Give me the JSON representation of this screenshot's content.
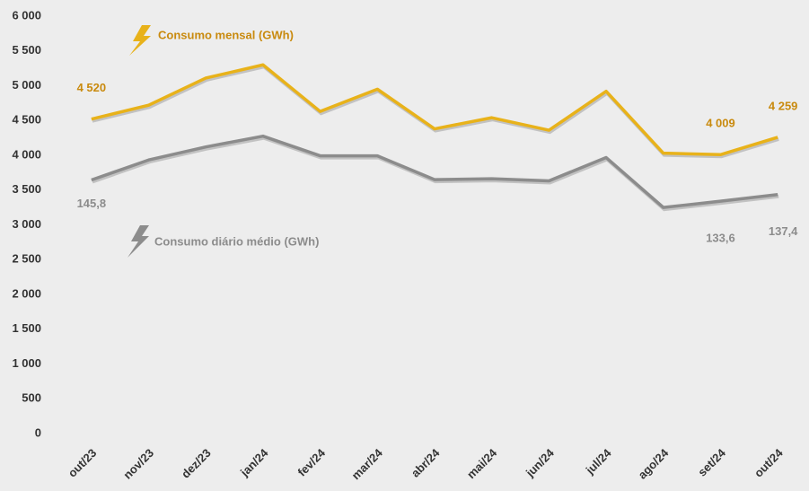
{
  "chart_data": {
    "type": "line",
    "categories": [
      "out/23",
      "nov/23",
      "dez/23",
      "jan/24",
      "fev/24",
      "mar/24",
      "abr/24",
      "mai/24",
      "jun/24",
      "jul/24",
      "ago/24",
      "set/24",
      "out/24"
    ],
    "series": [
      {
        "name": "Consumo mensal (GWh)",
        "color": "#e8b21a",
        "label_color": "#c98a0e",
        "values": [
          4520,
          4720,
          5110,
          5300,
          4630,
          4950,
          4380,
          4540,
          4360,
          4920,
          4030,
          4009,
          4259
        ],
        "value_labels": [
          "4 520",
          null,
          null,
          null,
          null,
          null,
          null,
          null,
          null,
          null,
          null,
          "4 009",
          "4 259"
        ]
      },
      {
        "name": "Consumo diário médio (GWh)",
        "color": "#8c8c8c",
        "label_color": "#8c8c8c",
        "axis": "y2",
        "values": [
          145.8,
          157.3,
          164.8,
          171.0,
          159.7,
          159.7,
          146.0,
          146.5,
          145.3,
          158.7,
          130.0,
          133.6,
          137.4
        ],
        "value_labels": [
          "145,8",
          null,
          null,
          null,
          null,
          null,
          null,
          null,
          null,
          null,
          null,
          "133,6",
          "137,4"
        ]
      }
    ],
    "ylim": [
      0,
      6000
    ],
    "yticks": [
      0,
      500,
      {
        "value": 1000,
        "label": "1 000"
      },
      {
        "value": 1500,
        "label": "1 500"
      },
      {
        "value": 2000,
        "label": "2 000"
      },
      {
        "value": 2500,
        "label": "2 500"
      },
      {
        "value": 3000,
        "label": "3 000"
      },
      {
        "value": 3500,
        "label": "3 500"
      },
      {
        "value": 4000,
        "label": "4 000"
      },
      {
        "value": 4500,
        "label": "4 500"
      },
      {
        "value": 5000,
        "label": "5 000"
      },
      {
        "value": 5500,
        "label": "5 500"
      },
      {
        "value": 6000,
        "label": "6 000"
      }
    ],
    "y2lim": [
      0,
      240
    ],
    "grid": false
  }
}
